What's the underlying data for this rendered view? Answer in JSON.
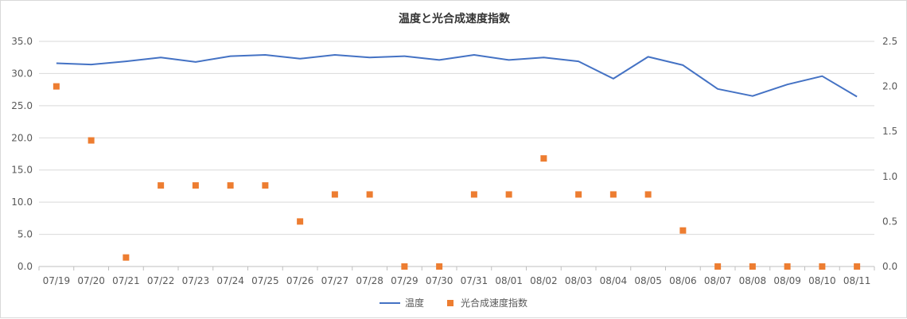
{
  "chart_data": {
    "type": "line",
    "title": "温度と光合成速度指数",
    "categories": [
      "07/19",
      "07/20",
      "07/21",
      "07/22",
      "07/23",
      "07/24",
      "07/25",
      "07/26",
      "07/27",
      "07/28",
      "07/29",
      "07/30",
      "07/31",
      "08/01",
      "08/02",
      "08/03",
      "08/04",
      "08/05",
      "08/06",
      "08/07",
      "08/08",
      "08/09",
      "08/10",
      "08/11"
    ],
    "y_left": {
      "ylim": [
        0,
        35
      ],
      "ticks": [
        "0.0",
        "5.0",
        "10.0",
        "15.0",
        "20.0",
        "25.0",
        "30.0",
        "35.0"
      ]
    },
    "y_right": {
      "ylim": [
        0,
        2.5
      ],
      "ticks": [
        "0.0",
        "0.5",
        "1.0",
        "1.5",
        "2.0",
        "2.5"
      ]
    },
    "grid": true,
    "legend_position": "bottom",
    "series": [
      {
        "name": "温度",
        "render": "line",
        "axis": "left",
        "color": "#4472c4",
        "values": [
          31.6,
          31.4,
          31.9,
          32.5,
          31.8,
          32.7,
          32.9,
          32.3,
          32.9,
          32.5,
          32.7,
          32.1,
          32.9,
          32.1,
          32.5,
          31.9,
          29.2,
          32.6,
          31.3,
          27.6,
          26.5,
          28.3,
          29.6,
          26.4
        ]
      },
      {
        "name": "光合成速度指数",
        "render": "marker",
        "axis": "right",
        "color": "#ed7d31",
        "values": [
          2.0,
          1.4,
          0.1,
          0.9,
          0.9,
          0.9,
          0.9,
          0.5,
          0.8,
          0.8,
          0.0,
          0.0,
          0.8,
          0.8,
          1.2,
          0.8,
          0.8,
          0.8,
          0.4,
          0.0,
          0.0,
          0.0,
          0.0,
          0.0
        ]
      }
    ]
  }
}
